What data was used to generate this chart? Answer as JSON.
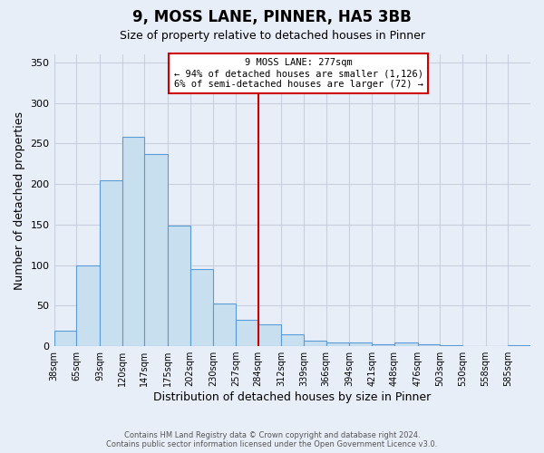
{
  "title": "9, MOSS LANE, PINNER, HA5 3BB",
  "subtitle": "Size of property relative to detached houses in Pinner",
  "xlabel": "Distribution of detached houses by size in Pinner",
  "ylabel": "Number of detached properties",
  "bin_labels": [
    "38sqm",
    "65sqm",
    "93sqm",
    "120sqm",
    "147sqm",
    "175sqm",
    "202sqm",
    "230sqm",
    "257sqm",
    "284sqm",
    "312sqm",
    "339sqm",
    "366sqm",
    "394sqm",
    "421sqm",
    "448sqm",
    "476sqm",
    "503sqm",
    "530sqm",
    "558sqm",
    "585sqm"
  ],
  "bin_edges": [
    38,
    65,
    93,
    120,
    147,
    175,
    202,
    230,
    257,
    284,
    312,
    339,
    366,
    394,
    421,
    448,
    476,
    503,
    530,
    558,
    585
  ],
  "bar_heights": [
    19,
    100,
    205,
    258,
    237,
    149,
    95,
    53,
    33,
    27,
    15,
    7,
    5,
    5,
    2,
    5,
    2,
    1,
    0,
    0,
    1
  ],
  "bar_color": "#c8dff0",
  "bar_edge_color": "#5b9bd5",
  "property_line_x": 284,
  "annotation_title": "9 MOSS LANE: 277sqm",
  "annotation_line1": "← 94% of detached houses are smaller (1,126)",
  "annotation_line2": "6% of semi-detached houses are larger (72) →",
  "annotation_box_color": "#ffffff",
  "annotation_box_edge_color": "#cc0000",
  "vline_color": "#cc0000",
  "ylim": [
    0,
    360
  ],
  "yticks": [
    0,
    50,
    100,
    150,
    200,
    250,
    300,
    350
  ],
  "footer_line1": "Contains HM Land Registry data © Crown copyright and database right 2024.",
  "footer_line2": "Contains public sector information licensed under the Open Government Licence v3.0.",
  "bg_color": "#e8eef8",
  "grid_color": "#c8d0e0",
  "title_fontsize": 12,
  "subtitle_fontsize": 9,
  "ylabel_fontsize": 9,
  "xlabel_fontsize": 9,
  "tick_fontsize": 7
}
